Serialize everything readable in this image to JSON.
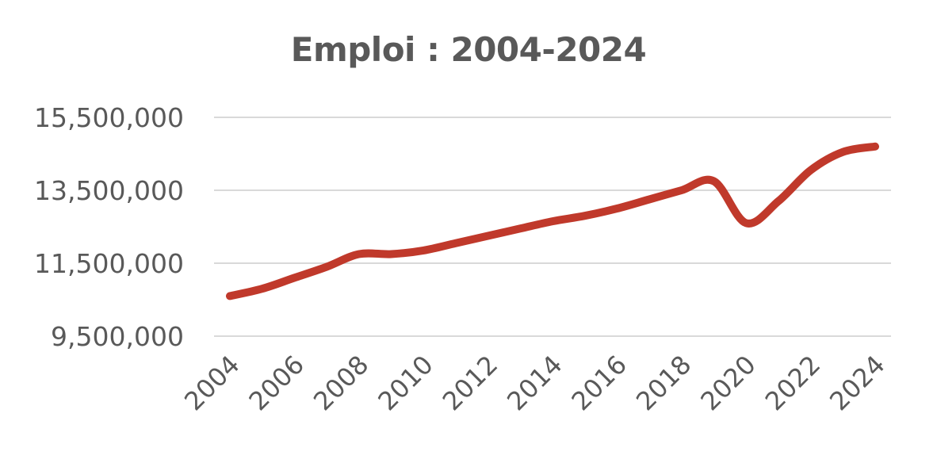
{
  "chart_data": {
    "type": "line",
    "title": "Emploi : 2004-2024",
    "xlabel": "",
    "ylabel": "",
    "x": [
      "2004",
      "2005",
      "2006",
      "2007",
      "2008",
      "2009",
      "2010",
      "2011",
      "2012",
      "2013",
      "2014",
      "2015",
      "2016",
      "2017",
      "2018",
      "2019",
      "2020",
      "2021",
      "2022",
      "2023",
      "2024"
    ],
    "x_tick_labels": [
      "2004",
      "2006",
      "2008",
      "2010",
      "2012",
      "2014",
      "2016",
      "2018",
      "2020",
      "2022",
      "2024"
    ],
    "y_ticks": [
      9500000,
      11500000,
      13500000,
      15500000
    ],
    "y_tick_labels": [
      "9,500,000",
      "11,500,000",
      "13,500,000",
      "15,500,000"
    ],
    "ylim": [
      9500000,
      15500000
    ],
    "grid": true,
    "legend": "none",
    "series": [
      {
        "color": "#c0392b",
        "values": [
          10600000,
          10800000,
          11100000,
          11400000,
          11750000,
          11750000,
          11850000,
          12050000,
          12250000,
          12450000,
          12650000,
          12800000,
          13000000,
          13250000,
          13500000,
          13750000,
          12600000,
          13200000,
          14050000,
          14550000,
          14700000
        ]
      }
    ]
  }
}
